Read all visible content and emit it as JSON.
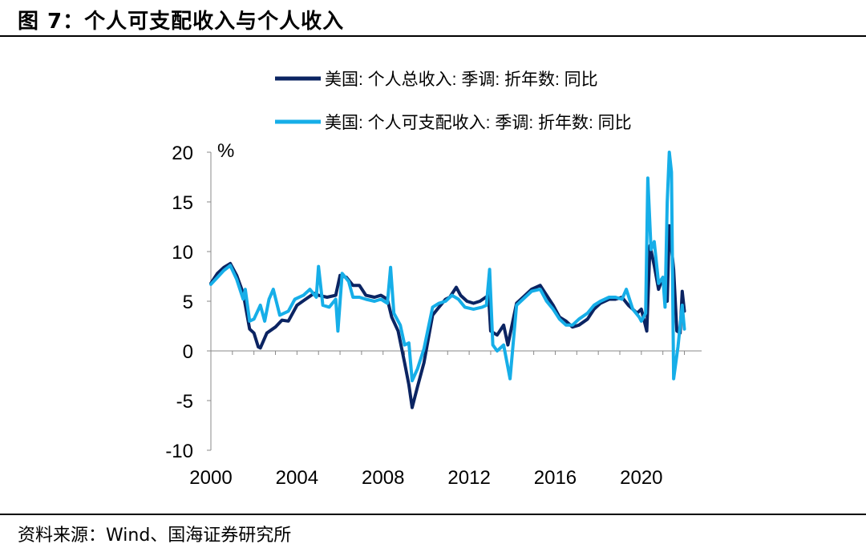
{
  "header": {
    "title": "图 7：个人可支配收入与个人收入"
  },
  "footer": {
    "source": "资料来源：Wind、国海证券研究所"
  },
  "chart_data": {
    "type": "line",
    "ylabel": "%",
    "ylim": [
      -10,
      20
    ],
    "yticks": [
      20,
      15,
      10,
      5,
      0,
      -5,
      -10
    ],
    "xlim": [
      2000,
      2022.8
    ],
    "xticks": [
      2000,
      2004,
      2008,
      2012,
      2016,
      2020
    ],
    "legend_position": "top-right",
    "series": [
      {
        "name": "美国: 个人总收入: 季调: 折年数: 同比",
        "color": "#0b2462",
        "points": [
          [
            2000.0,
            6.8
          ],
          [
            2000.3,
            7.8
          ],
          [
            2000.6,
            8.4
          ],
          [
            2000.9,
            8.8
          ],
          [
            2001.2,
            7.6
          ],
          [
            2001.5,
            5.8
          ],
          [
            2001.8,
            2.2
          ],
          [
            2002.0,
            1.8
          ],
          [
            2002.2,
            0.4
          ],
          [
            2002.3,
            0.3
          ],
          [
            2002.6,
            1.8
          ],
          [
            2003.0,
            2.4
          ],
          [
            2003.3,
            3.1
          ],
          [
            2003.6,
            3.0
          ],
          [
            2004.0,
            4.6
          ],
          [
            2004.4,
            5.2
          ],
          [
            2004.8,
            5.8
          ],
          [
            2005.0,
            5.6
          ],
          [
            2005.4,
            5.4
          ],
          [
            2005.8,
            5.6
          ],
          [
            2006.0,
            7.6
          ],
          [
            2006.3,
            7.4
          ],
          [
            2006.6,
            6.6
          ],
          [
            2006.9,
            6.6
          ],
          [
            2007.2,
            5.6
          ],
          [
            2007.6,
            5.4
          ],
          [
            2007.9,
            5.6
          ],
          [
            2008.2,
            5.2
          ],
          [
            2008.4,
            3.4
          ],
          [
            2008.7,
            2.0
          ],
          [
            2009.0,
            -1.2
          ],
          [
            2009.2,
            -3.4
          ],
          [
            2009.35,
            -5.7
          ],
          [
            2009.6,
            -3.6
          ],
          [
            2009.9,
            -1.2
          ],
          [
            2010.3,
            3.6
          ],
          [
            2010.6,
            4.4
          ],
          [
            2010.9,
            5.2
          ],
          [
            2011.1,
            5.4
          ],
          [
            2011.4,
            6.4
          ],
          [
            2011.6,
            5.6
          ],
          [
            2011.9,
            5.0
          ],
          [
            2012.2,
            4.8
          ],
          [
            2012.5,
            5.0
          ],
          [
            2012.9,
            5.6
          ],
          [
            2013.0,
            2.0
          ],
          [
            2013.3,
            1.6
          ],
          [
            2013.6,
            2.6
          ],
          [
            2013.8,
            0.6
          ],
          [
            2014.2,
            4.8
          ],
          [
            2014.6,
            5.6
          ],
          [
            2014.9,
            6.2
          ],
          [
            2015.3,
            6.6
          ],
          [
            2015.6,
            5.6
          ],
          [
            2015.9,
            4.6
          ],
          [
            2016.2,
            3.4
          ],
          [
            2016.5,
            3.0
          ],
          [
            2016.8,
            2.4
          ],
          [
            2017.1,
            2.6
          ],
          [
            2017.5,
            3.2
          ],
          [
            2017.8,
            4.2
          ],
          [
            2018.1,
            4.8
          ],
          [
            2018.5,
            5.2
          ],
          [
            2018.8,
            5.2
          ],
          [
            2019.1,
            5.4
          ],
          [
            2019.4,
            4.6
          ],
          [
            2019.8,
            3.8
          ],
          [
            2020.0,
            4.2
          ],
          [
            2020.25,
            2.0
          ],
          [
            2020.4,
            10.6
          ],
          [
            2020.6,
            8.6
          ],
          [
            2020.8,
            6.2
          ],
          [
            2021.0,
            7.4
          ],
          [
            2021.2,
            5.0
          ],
          [
            2021.3,
            12.6
          ],
          [
            2021.5,
            8.2
          ],
          [
            2021.65,
            2.0
          ],
          [
            2021.8,
            1.8
          ],
          [
            2021.9,
            6.0
          ],
          [
            2022.0,
            4.0
          ]
        ]
      },
      {
        "name": "美国: 个人可支配收入: 季调: 折年数: 同比",
        "color": "#16aee8",
        "points": [
          [
            2000.0,
            6.7
          ],
          [
            2000.3,
            7.4
          ],
          [
            2000.6,
            8.1
          ],
          [
            2000.9,
            8.6
          ],
          [
            2001.2,
            7.2
          ],
          [
            2001.5,
            5.2
          ],
          [
            2001.6,
            6.2
          ],
          [
            2001.8,
            3.0
          ],
          [
            2002.0,
            3.2
          ],
          [
            2002.3,
            4.6
          ],
          [
            2002.5,
            3.0
          ],
          [
            2002.7,
            5.2
          ],
          [
            2002.9,
            6.2
          ],
          [
            2003.2,
            3.6
          ],
          [
            2003.6,
            4.0
          ],
          [
            2003.9,
            5.2
          ],
          [
            2004.3,
            5.6
          ],
          [
            2004.6,
            6.2
          ],
          [
            2004.9,
            5.4
          ],
          [
            2005.0,
            8.5
          ],
          [
            2005.2,
            4.6
          ],
          [
            2005.5,
            4.4
          ],
          [
            2005.8,
            5.2
          ],
          [
            2005.9,
            2.0
          ],
          [
            2006.1,
            7.8
          ],
          [
            2006.4,
            7.0
          ],
          [
            2006.6,
            5.4
          ],
          [
            2006.9,
            5.4
          ],
          [
            2007.2,
            5.2
          ],
          [
            2007.6,
            5.0
          ],
          [
            2007.9,
            5.2
          ],
          [
            2008.2,
            4.8
          ],
          [
            2008.35,
            8.4
          ],
          [
            2008.5,
            3.8
          ],
          [
            2008.8,
            2.6
          ],
          [
            2009.0,
            0.6
          ],
          [
            2009.2,
            0.8
          ],
          [
            2009.35,
            -3.0
          ],
          [
            2009.6,
            -1.8
          ],
          [
            2009.9,
            0.2
          ],
          [
            2010.3,
            4.4
          ],
          [
            2010.6,
            4.8
          ],
          [
            2010.9,
            5.0
          ],
          [
            2011.2,
            5.6
          ],
          [
            2011.5,
            5.2
          ],
          [
            2011.8,
            4.4
          ],
          [
            2012.2,
            4.2
          ],
          [
            2012.6,
            4.4
          ],
          [
            2012.8,
            4.6
          ],
          [
            2012.95,
            8.2
          ],
          [
            2013.1,
            0.6
          ],
          [
            2013.3,
            0.0
          ],
          [
            2013.6,
            0.6
          ],
          [
            2013.9,
            -2.8
          ],
          [
            2014.2,
            4.6
          ],
          [
            2014.6,
            5.4
          ],
          [
            2014.9,
            6.0
          ],
          [
            2015.3,
            6.2
          ],
          [
            2015.6,
            5.0
          ],
          [
            2015.9,
            4.2
          ],
          [
            2016.2,
            3.2
          ],
          [
            2016.5,
            2.6
          ],
          [
            2016.8,
            2.6
          ],
          [
            2017.1,
            3.2
          ],
          [
            2017.5,
            3.8
          ],
          [
            2017.8,
            4.6
          ],
          [
            2018.1,
            5.0
          ],
          [
            2018.5,
            5.4
          ],
          [
            2018.8,
            5.4
          ],
          [
            2019.1,
            5.2
          ],
          [
            2019.3,
            6.2
          ],
          [
            2019.6,
            4.2
          ],
          [
            2019.9,
            3.4
          ],
          [
            2020.0,
            3.0
          ],
          [
            2020.2,
            3.8
          ],
          [
            2020.3,
            17.4
          ],
          [
            2020.45,
            10.2
          ],
          [
            2020.6,
            11.0
          ],
          [
            2020.8,
            6.8
          ],
          [
            2021.0,
            7.4
          ],
          [
            2021.1,
            4.4
          ],
          [
            2021.2,
            15.0
          ],
          [
            2021.3,
            20.0
          ],
          [
            2021.4,
            18.0
          ],
          [
            2021.5,
            -2.8
          ],
          [
            2021.7,
            0.4
          ],
          [
            2021.9,
            4.6
          ],
          [
            2022.0,
            2.2
          ]
        ]
      }
    ]
  }
}
